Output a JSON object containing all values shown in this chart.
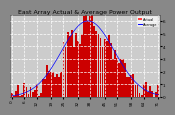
{
  "title": "East Array Actual & Average Power Output",
  "bg_color": "#888888",
  "plot_bg": "#cccccc",
  "bar_color": "#cc0000",
  "line_color": "#0000ff",
  "ylabel_right": [
    "0",
    "1",
    "2",
    "3",
    "4",
    "5",
    "6"
  ],
  "ylim": [
    0,
    6.5
  ],
  "n_bars": 72,
  "legend_items": [
    "Actual",
    "Average"
  ],
  "legend_colors": [
    "#ff4444",
    "#0000ff"
  ],
  "grid_color": "#ffffff",
  "tick_color": "#000000",
  "title_color": "#000000",
  "title_fontsize": 4.5,
  "axis_fontsize": 3.0
}
